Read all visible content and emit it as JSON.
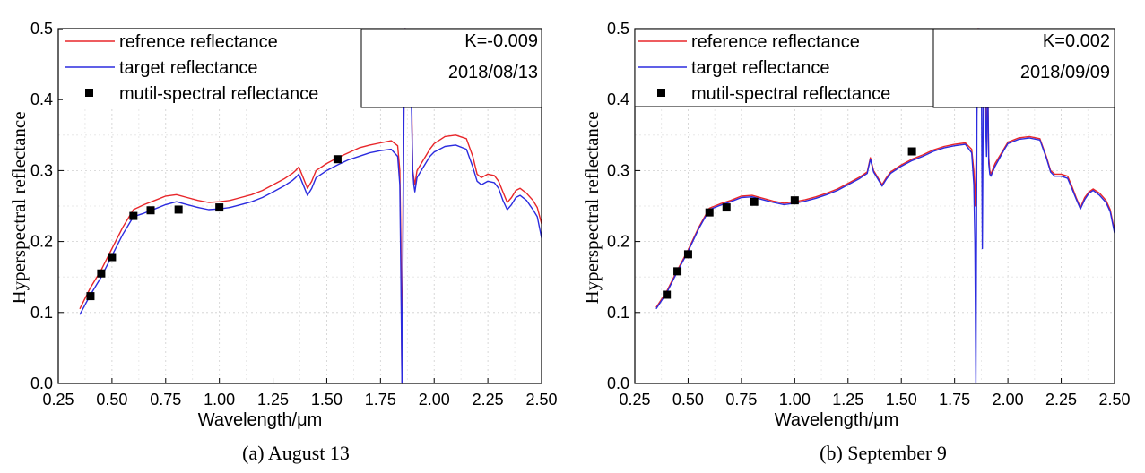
{
  "chart_data": [
    {
      "type": "line",
      "caption": "(a) August 13",
      "xlabel": "Wavelength/μm",
      "ylabel": "Hyperspectral reflectance",
      "xlim": [
        0.25,
        2.5
      ],
      "ylim": [
        0.0,
        0.5
      ],
      "xticks": [
        "0.25",
        "0.50",
        "0.75",
        "1.00",
        "1.25",
        "1.50",
        "1.75",
        "2.00",
        "2.25",
        "2.50"
      ],
      "yticks": [
        "0.0",
        "0.1",
        "0.2",
        "0.3",
        "0.4",
        "0.5"
      ],
      "grid": true,
      "legend_position": "top-left",
      "annotations": [
        "K=-0.009",
        "2018/08/13"
      ],
      "annotation_position": "top-right",
      "series": [
        {
          "name": "refrence reflectance",
          "color": "#e8262a",
          "kind": "line",
          "x": [
            0.35,
            0.4,
            0.45,
            0.5,
            0.55,
            0.6,
            0.65,
            0.7,
            0.75,
            0.8,
            0.85,
            0.9,
            0.95,
            1.0,
            1.05,
            1.1,
            1.15,
            1.2,
            1.25,
            1.3,
            1.34,
            1.355,
            1.37,
            1.39,
            1.41,
            1.43,
            1.45,
            1.5,
            1.55,
            1.6,
            1.65,
            1.7,
            1.75,
            1.8,
            1.83,
            1.84,
            1.845,
            1.85,
            1.855,
            1.86,
            1.865,
            1.87,
            1.875,
            1.88,
            1.885,
            1.89,
            1.895,
            1.9,
            1.905,
            1.91,
            1.915,
            1.92,
            1.94,
            1.96,
            1.98,
            2.0,
            2.05,
            2.1,
            2.15,
            2.18,
            2.2,
            2.22,
            2.25,
            2.28,
            2.3,
            2.32,
            2.34,
            2.36,
            2.38,
            2.4,
            2.43,
            2.46,
            2.48,
            2.5
          ],
          "y": [
            0.105,
            0.135,
            0.16,
            0.19,
            0.22,
            0.245,
            0.252,
            0.258,
            0.264,
            0.266,
            0.262,
            0.258,
            0.255,
            0.256,
            0.258,
            0.262,
            0.266,
            0.272,
            0.28,
            0.288,
            0.296,
            0.3,
            0.305,
            0.29,
            0.275,
            0.285,
            0.3,
            0.31,
            0.318,
            0.325,
            0.332,
            0.336,
            0.339,
            0.342,
            0.335,
            0.3,
            0.2,
            0.0,
            0.25,
            0.43,
            0.5,
            0.48,
            0.42,
            0.47,
            0.44,
            0.46,
            0.4,
            0.3,
            0.29,
            0.28,
            0.29,
            0.3,
            0.31,
            0.32,
            0.33,
            0.338,
            0.348,
            0.35,
            0.345,
            0.32,
            0.295,
            0.29,
            0.295,
            0.293,
            0.285,
            0.27,
            0.255,
            0.262,
            0.272,
            0.275,
            0.268,
            0.258,
            0.248,
            0.225
          ]
        },
        {
          "name": "target reflectance",
          "color": "#2b2bdf",
          "kind": "line",
          "x": [
            0.35,
            0.4,
            0.45,
            0.5,
            0.55,
            0.6,
            0.65,
            0.7,
            0.75,
            0.8,
            0.85,
            0.9,
            0.95,
            1.0,
            1.05,
            1.1,
            1.15,
            1.2,
            1.25,
            1.3,
            1.34,
            1.355,
            1.37,
            1.39,
            1.41,
            1.43,
            1.45,
            1.5,
            1.55,
            1.6,
            1.65,
            1.7,
            1.75,
            1.8,
            1.83,
            1.84,
            1.845,
            1.85,
            1.855,
            1.86,
            1.865,
            1.87,
            1.875,
            1.88,
            1.885,
            1.89,
            1.895,
            1.9,
            1.905,
            1.91,
            1.915,
            1.92,
            1.94,
            1.96,
            1.98,
            2.0,
            2.05,
            2.1,
            2.15,
            2.18,
            2.2,
            2.22,
            2.25,
            2.28,
            2.3,
            2.32,
            2.34,
            2.36,
            2.38,
            2.4,
            2.43,
            2.46,
            2.48,
            2.5
          ],
          "y": [
            0.097,
            0.125,
            0.15,
            0.18,
            0.21,
            0.235,
            0.24,
            0.246,
            0.252,
            0.256,
            0.252,
            0.248,
            0.245,
            0.246,
            0.248,
            0.252,
            0.256,
            0.262,
            0.27,
            0.278,
            0.286,
            0.29,
            0.295,
            0.28,
            0.265,
            0.275,
            0.29,
            0.3,
            0.308,
            0.315,
            0.32,
            0.325,
            0.328,
            0.33,
            0.32,
            0.28,
            0.15,
            0.0,
            0.2,
            0.42,
            0.5,
            0.47,
            0.41,
            0.46,
            0.43,
            0.44,
            0.38,
            0.3,
            0.28,
            0.27,
            0.28,
            0.29,
            0.3,
            0.31,
            0.32,
            0.326,
            0.334,
            0.336,
            0.33,
            0.305,
            0.285,
            0.28,
            0.285,
            0.283,
            0.275,
            0.258,
            0.245,
            0.252,
            0.262,
            0.265,
            0.258,
            0.245,
            0.235,
            0.205
          ]
        },
        {
          "name": "mutil-spectral reflectance",
          "color": "#000000",
          "kind": "scatter",
          "x": [
            0.4,
            0.45,
            0.5,
            0.6,
            0.68,
            0.81,
            1.0,
            1.55
          ],
          "y": [
            0.123,
            0.155,
            0.178,
            0.236,
            0.244,
            0.245,
            0.248,
            0.316
          ]
        }
      ]
    },
    {
      "type": "line",
      "caption": "(b) September 9",
      "xlabel": "Wavelength/μm",
      "ylabel": "Hyperspectral reflectance",
      "xlim": [
        0.25,
        2.5
      ],
      "ylim": [
        0.0,
        0.5
      ],
      "xticks": [
        "0.25",
        "0.50",
        "0.75",
        "1.00",
        "1.25",
        "1.50",
        "1.75",
        "2.00",
        "2.25",
        "2.50"
      ],
      "yticks": [
        "0.0",
        "0.1",
        "0.2",
        "0.3",
        "0.4",
        "0.5"
      ],
      "grid": true,
      "legend_position": "top-left",
      "annotations": [
        "K=0.002",
        "2018/09/09"
      ],
      "annotation_position": "top-right",
      "series": [
        {
          "name": "reference reflectance",
          "color": "#e8262a",
          "kind": "line",
          "x": [
            0.35,
            0.4,
            0.45,
            0.5,
            0.55,
            0.6,
            0.65,
            0.7,
            0.75,
            0.8,
            0.85,
            0.9,
            0.95,
            1.0,
            1.05,
            1.1,
            1.15,
            1.2,
            1.25,
            1.3,
            1.34,
            1.355,
            1.37,
            1.39,
            1.41,
            1.43,
            1.45,
            1.5,
            1.55,
            1.6,
            1.65,
            1.7,
            1.75,
            1.8,
            1.83,
            1.84,
            1.845,
            1.85,
            1.855,
            1.86,
            1.865,
            1.87,
            1.875,
            1.88,
            1.885,
            1.89,
            1.895,
            1.9,
            1.905,
            1.91,
            1.915,
            1.92,
            1.94,
            1.96,
            1.98,
            2.0,
            2.05,
            2.1,
            2.15,
            2.18,
            2.2,
            2.22,
            2.25,
            2.28,
            2.3,
            2.32,
            2.34,
            2.36,
            2.38,
            2.4,
            2.43,
            2.46,
            2.48,
            2.5
          ],
          "y": [
            0.107,
            0.13,
            0.16,
            0.188,
            0.22,
            0.247,
            0.253,
            0.258,
            0.264,
            0.265,
            0.261,
            0.257,
            0.254,
            0.256,
            0.259,
            0.263,
            0.268,
            0.274,
            0.282,
            0.29,
            0.298,
            0.318,
            0.3,
            0.29,
            0.28,
            0.29,
            0.298,
            0.308,
            0.316,
            0.322,
            0.329,
            0.334,
            0.337,
            0.339,
            0.33,
            0.3,
            0.25,
            0.3,
            0.4,
            0.5,
            0.47,
            0.42,
            0.48,
            0.43,
            0.46,
            0.47,
            0.4,
            0.33,
            0.45,
            0.32,
            0.3,
            0.295,
            0.31,
            0.32,
            0.33,
            0.34,
            0.346,
            0.348,
            0.345,
            0.32,
            0.3,
            0.295,
            0.295,
            0.292,
            0.278,
            0.262,
            0.248,
            0.262,
            0.27,
            0.274,
            0.268,
            0.258,
            0.245,
            0.215
          ]
        },
        {
          "name": "target reflectance",
          "color": "#2b2bdf",
          "kind": "line",
          "x": [
            0.35,
            0.4,
            0.45,
            0.5,
            0.55,
            0.6,
            0.65,
            0.7,
            0.75,
            0.8,
            0.85,
            0.9,
            0.95,
            1.0,
            1.05,
            1.1,
            1.15,
            1.2,
            1.25,
            1.3,
            1.34,
            1.355,
            1.37,
            1.39,
            1.41,
            1.43,
            1.45,
            1.5,
            1.55,
            1.6,
            1.65,
            1.7,
            1.75,
            1.8,
            1.83,
            1.84,
            1.845,
            1.85,
            1.855,
            1.86,
            1.865,
            1.87,
            1.875,
            1.88,
            1.885,
            1.89,
            1.895,
            1.9,
            1.905,
            1.91,
            1.915,
            1.92,
            1.94,
            1.96,
            1.98,
            2.0,
            2.05,
            2.1,
            2.15,
            2.18,
            2.2,
            2.22,
            2.25,
            2.28,
            2.3,
            2.32,
            2.34,
            2.36,
            2.38,
            2.4,
            2.43,
            2.46,
            2.48,
            2.5
          ],
          "y": [
            0.105,
            0.128,
            0.158,
            0.186,
            0.218,
            0.245,
            0.251,
            0.256,
            0.262,
            0.263,
            0.259,
            0.255,
            0.252,
            0.254,
            0.257,
            0.261,
            0.266,
            0.272,
            0.28,
            0.288,
            0.296,
            0.316,
            0.298,
            0.288,
            0.278,
            0.288,
            0.296,
            0.306,
            0.314,
            0.32,
            0.327,
            0.332,
            0.335,
            0.337,
            0.325,
            0.28,
            0.2,
            0.0,
            0.38,
            0.48,
            0.5,
            0.4,
            0.47,
            0.19,
            0.45,
            0.46,
            0.38,
            0.32,
            0.44,
            0.31,
            0.295,
            0.292,
            0.306,
            0.317,
            0.328,
            0.338,
            0.344,
            0.346,
            0.343,
            0.318,
            0.298,
            0.292,
            0.292,
            0.289,
            0.275,
            0.26,
            0.246,
            0.259,
            0.268,
            0.272,
            0.265,
            0.255,
            0.242,
            0.212
          ]
        },
        {
          "name": "mutil-spectral reflectance",
          "color": "#000000",
          "kind": "scatter",
          "x": [
            0.4,
            0.45,
            0.5,
            0.6,
            0.68,
            0.81,
            1.0,
            1.55
          ],
          "y": [
            0.125,
            0.158,
            0.182,
            0.241,
            0.248,
            0.256,
            0.258,
            0.327
          ]
        }
      ]
    }
  ]
}
